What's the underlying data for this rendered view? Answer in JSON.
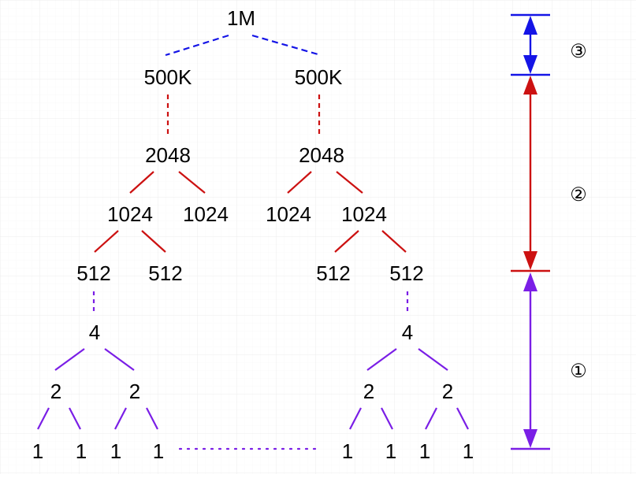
{
  "colors": {
    "blue": "#1414e6",
    "red": "#cc1111",
    "purple": "#7a1ee6",
    "grid": "#ececec",
    "text": "#000000"
  },
  "tree": {
    "root": "1M",
    "level_500k": [
      "500K",
      "500K"
    ],
    "level_2048": [
      "2048",
      "2048"
    ],
    "level_1024": [
      "1024",
      "1024",
      "1024",
      "1024"
    ],
    "level_512": [
      "512",
      "512",
      "512",
      "512"
    ],
    "level_4": [
      "4",
      "4"
    ],
    "level_2": [
      "2",
      "2",
      "2",
      "2"
    ],
    "level_1": [
      "1",
      "1",
      "1",
      "1",
      "1",
      "1",
      "1",
      "1"
    ]
  },
  "brackets": {
    "stage_3": "③",
    "stage_2": "②",
    "stage_1": "①"
  }
}
